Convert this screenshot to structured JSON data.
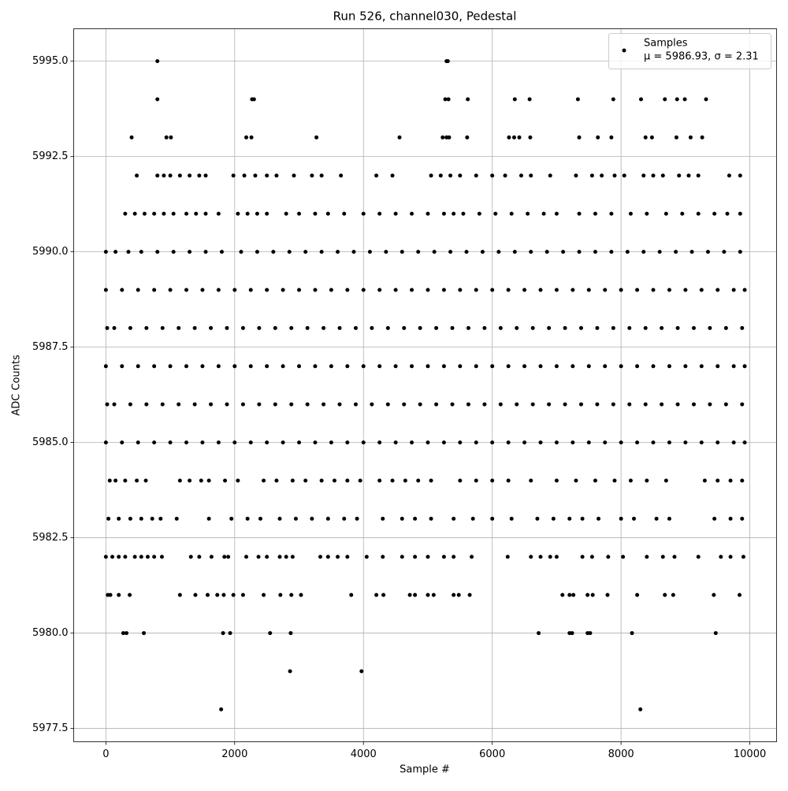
{
  "chart_data": {
    "type": "scatter",
    "title": "Run 526, channel030, Pedestal",
    "x_label": "Sample #",
    "y_label": "ADC Counts",
    "xlim": [
      -500,
      10415
    ],
    "ylim": [
      5977.15,
      5995.85
    ],
    "xticks": [
      0,
      2000,
      4000,
      6000,
      8000,
      10000
    ],
    "yticks": [
      5977.5,
      {
        "value": 5980,
        "label": "5980.0"
      },
      5982.5,
      {
        "value": 5985,
        "label": "5985.0"
      },
      5987.5,
      {
        "value": 5990,
        "label": "5990.0"
      },
      5992.5,
      {
        "value": 5995,
        "label": "5995.0"
      }
    ],
    "grid": true,
    "legend": "upper right",
    "legend_note": "μ = 5986.93, σ = 2.31",
    "series": [
      {
        "name": "Samples",
        "color": "#000000",
        "x": [
          800,
          5290,
          5310,
          800,
          2270,
          2300,
          5270,
          5320,
          5620,
          6350,
          6580,
          7330,
          7880,
          8310,
          8680,
          8870,
          8990,
          9320,
          400,
          940,
          1010,
          2180,
          2260,
          3270,
          4560,
          5230,
          5290,
          5330,
          5610,
          6260,
          6340,
          6420,
          6590,
          7350,
          7640,
          7850,
          8380,
          8480,
          8860,
          9080,
          9260,
          480,
          800,
          900,
          1000,
          1150,
          1300,
          1450,
          1550,
          1980,
          2150,
          2320,
          2500,
          2650,
          2920,
          3200,
          3350,
          3650,
          4200,
          4450,
          5050,
          5200,
          5350,
          5500,
          5750,
          6000,
          6200,
          6450,
          6600,
          6900,
          7300,
          7550,
          7700,
          7900,
          8050,
          8350,
          8500,
          8650,
          8900,
          9050,
          9200,
          9680,
          9850,
          300,
          450,
          600,
          750,
          900,
          1050,
          1250,
          1400,
          1550,
          1750,
          2050,
          2200,
          2350,
          2500,
          2800,
          3000,
          3250,
          3450,
          3700,
          4000,
          4250,
          4500,
          4750,
          5000,
          5250,
          5400,
          5550,
          5800,
          6050,
          6300,
          6550,
          6800,
          7000,
          7350,
          7600,
          7850,
          8150,
          8400,
          8700,
          8950,
          9200,
          9450,
          9650,
          9850,
          0,
          150,
          350,
          550,
          800,
          1050,
          1300,
          1550,
          1800,
          2100,
          2350,
          2600,
          2850,
          3100,
          3350,
          3600,
          3850,
          4100,
          4350,
          4600,
          4850,
          5100,
          5350,
          5600,
          5850,
          6100,
          6350,
          6600,
          6850,
          7100,
          7350,
          7600,
          7850,
          8100,
          8350,
          8600,
          8850,
          9100,
          9350,
          9600,
          9850,
          0,
          250,
          500,
          750,
          1000,
          1250,
          1500,
          1750,
          2000,
          2250,
          2500,
          2750,
          3000,
          3250,
          3500,
          3750,
          4000,
          4250,
          4500,
          4750,
          5000,
          5250,
          5500,
          5750,
          6000,
          6250,
          6500,
          6750,
          7000,
          7250,
          7500,
          7750,
          8000,
          8250,
          8500,
          8750,
          9000,
          9250,
          9500,
          9750,
          9920,
          20,
          130,
          380,
          630,
          880,
          1130,
          1380,
          1630,
          1880,
          2130,
          2380,
          2630,
          2880,
          3130,
          3380,
          3630,
          3880,
          4130,
          4380,
          4630,
          4880,
          5130,
          5380,
          5630,
          5880,
          6130,
          6380,
          6630,
          6880,
          7130,
          7380,
          7630,
          7880,
          8130,
          8380,
          8630,
          8880,
          9130,
          9380,
          9630,
          9880,
          0,
          250,
          500,
          750,
          1000,
          1250,
          1500,
          1750,
          2000,
          2250,
          2500,
          2750,
          3000,
          3250,
          3500,
          3750,
          4000,
          4250,
          4500,
          4750,
          5000,
          5250,
          5500,
          5750,
          6000,
          6250,
          6500,
          6750,
          7000,
          7250,
          7500,
          7750,
          8000,
          8250,
          8500,
          8750,
          9000,
          9250,
          9500,
          9750,
          9920,
          20,
          130,
          380,
          630,
          880,
          1130,
          1380,
          1630,
          1880,
          2130,
          2380,
          2630,
          2880,
          3130,
          3380,
          3630,
          3880,
          4130,
          4380,
          4630,
          4880,
          5130,
          5380,
          5630,
          5880,
          6130,
          6380,
          6630,
          6880,
          7130,
          7380,
          7630,
          7880,
          8130,
          8380,
          8630,
          8880,
          9130,
          9380,
          9630,
          9880,
          0,
          250,
          500,
          750,
          1000,
          1250,
          1500,
          1750,
          2000,
          2250,
          2500,
          2750,
          3000,
          3250,
          3500,
          3750,
          4000,
          4250,
          4500,
          4750,
          5000,
          5250,
          5500,
          5750,
          6000,
          6250,
          6500,
          6750,
          7000,
          7250,
          7500,
          7750,
          8000,
          8250,
          8500,
          8750,
          9000,
          9250,
          9500,
          9750,
          9920,
          60,
          150,
          300,
          480,
          620,
          1150,
          1300,
          1480,
          1600,
          1850,
          2050,
          2450,
          2650,
          2900,
          3100,
          3350,
          3550,
          3750,
          3950,
          4250,
          4450,
          4650,
          4850,
          5050,
          5500,
          5750,
          6000,
          6250,
          6600,
          7000,
          7300,
          7600,
          7900,
          8150,
          8400,
          8700,
          9300,
          9500,
          9700,
          9880,
          40,
          200,
          380,
          550,
          720,
          850,
          1100,
          1600,
          1950,
          2200,
          2400,
          2700,
          2950,
          3200,
          3450,
          3700,
          3900,
          4300,
          4600,
          4800,
          5050,
          5400,
          5700,
          6000,
          6300,
          6700,
          6950,
          7200,
          7400,
          7650,
          8000,
          8200,
          8550,
          8750,
          9450,
          9700,
          9880,
          0,
          100,
          200,
          300,
          450,
          550,
          650,
          750,
          870,
          1320,
          1450,
          1640,
          1840,
          1900,
          2180,
          2370,
          2500,
          2700,
          2800,
          2900,
          3330,
          3450,
          3600,
          3750,
          4050,
          4300,
          4600,
          4800,
          5000,
          5250,
          5400,
          5680,
          6240,
          6600,
          6750,
          6900,
          7000,
          7400,
          7550,
          7800,
          8030,
          8400,
          8650,
          8830,
          9200,
          9550,
          9700,
          9900,
          30,
          70,
          200,
          370,
          1150,
          1390,
          1580,
          1730,
          1830,
          1980,
          2130,
          2450,
          2710,
          2880,
          3030,
          3810,
          4200,
          4310,
          4720,
          4800,
          5000,
          5090,
          5400,
          5480,
          5650,
          7090,
          7200,
          7260,
          7480,
          7560,
          7790,
          8250,
          8680,
          8810,
          9440,
          9840,
          270,
          320,
          590,
          1820,
          1930,
          2550,
          2870,
          6720,
          7200,
          7240,
          7480,
          7520,
          8170,
          9470,
          2860,
          3970,
          1790,
          8300
        ],
        "values": [
          5995,
          5995,
          5995,
          5994,
          5994,
          5994,
          5994,
          5994,
          5994,
          5994,
          5994,
          5994,
          5994,
          5994,
          5994,
          5994,
          5994,
          5994,
          5993,
          5993,
          5993,
          5993,
          5993,
          5993,
          5993,
          5993,
          5993,
          5993,
          5993,
          5993,
          5993,
          5993,
          5993,
          5993,
          5993,
          5993,
          5993,
          5993,
          5993,
          5993,
          5993,
          5992,
          5992,
          5992,
          5992,
          5992,
          5992,
          5992,
          5992,
          5992,
          5992,
          5992,
          5992,
          5992,
          5992,
          5992,
          5992,
          5992,
          5992,
          5992,
          5992,
          5992,
          5992,
          5992,
          5992,
          5992,
          5992,
          5992,
          5992,
          5992,
          5992,
          5992,
          5992,
          5992,
          5992,
          5992,
          5992,
          5992,
          5992,
          5992,
          5992,
          5992,
          5992,
          5991,
          5991,
          5991,
          5991,
          5991,
          5991,
          5991,
          5991,
          5991,
          5991,
          5991,
          5991,
          5991,
          5991,
          5991,
          5991,
          5991,
          5991,
          5991,
          5991,
          5991,
          5991,
          5991,
          5991,
          5991,
          5991,
          5991,
          5991,
          5991,
          5991,
          5991,
          5991,
          5991,
          5991,
          5991,
          5991,
          5991,
          5991,
          5991,
          5991,
          5991,
          5991,
          5991,
          5991,
          5990,
          5990,
          5990,
          5990,
          5990,
          5990,
          5990,
          5990,
          5990,
          5990,
          5990,
          5990,
          5990,
          5990,
          5990,
          5990,
          5990,
          5990,
          5990,
          5990,
          5990,
          5990,
          5990,
          5990,
          5990,
          5990,
          5990,
          5990,
          5990,
          5990,
          5990,
          5990,
          5990,
          5990,
          5990,
          5990,
          5990,
          5990,
          5990,
          5990,
          5990,
          5989,
          5989,
          5989,
          5989,
          5989,
          5989,
          5989,
          5989,
          5989,
          5989,
          5989,
          5989,
          5989,
          5989,
          5989,
          5989,
          5989,
          5989,
          5989,
          5989,
          5989,
          5989,
          5989,
          5989,
          5989,
          5989,
          5989,
          5989,
          5989,
          5989,
          5989,
          5989,
          5989,
          5989,
          5989,
          5989,
          5989,
          5989,
          5989,
          5989,
          5989,
          5988,
          5988,
          5988,
          5988,
          5988,
          5988,
          5988,
          5988,
          5988,
          5988,
          5988,
          5988,
          5988,
          5988,
          5988,
          5988,
          5988,
          5988,
          5988,
          5988,
          5988,
          5988,
          5988,
          5988,
          5988,
          5988,
          5988,
          5988,
          5988,
          5988,
          5988,
          5988,
          5988,
          5988,
          5988,
          5988,
          5988,
          5988,
          5988,
          5988,
          5988,
          5987,
          5987,
          5987,
          5987,
          5987,
          5987,
          5987,
          5987,
          5987,
          5987,
          5987,
          5987,
          5987,
          5987,
          5987,
          5987,
          5987,
          5987,
          5987,
          5987,
          5987,
          5987,
          5987,
          5987,
          5987,
          5987,
          5987,
          5987,
          5987,
          5987,
          5987,
          5987,
          5987,
          5987,
          5987,
          5987,
          5987,
          5987,
          5987,
          5987,
          5987,
          5986,
          5986,
          5986,
          5986,
          5986,
          5986,
          5986,
          5986,
          5986,
          5986,
          5986,
          5986,
          5986,
          5986,
          5986,
          5986,
          5986,
          5986,
          5986,
          5986,
          5986,
          5986,
          5986,
          5986,
          5986,
          5986,
          5986,
          5986,
          5986,
          5986,
          5986,
          5986,
          5986,
          5986,
          5986,
          5986,
          5986,
          5986,
          5986,
          5986,
          5986,
          5985,
          5985,
          5985,
          5985,
          5985,
          5985,
          5985,
          5985,
          5985,
          5985,
          5985,
          5985,
          5985,
          5985,
          5985,
          5985,
          5985,
          5985,
          5985,
          5985,
          5985,
          5985,
          5985,
          5985,
          5985,
          5985,
          5985,
          5985,
          5985,
          5985,
          5985,
          5985,
          5985,
          5985,
          5985,
          5985,
          5985,
          5985,
          5985,
          5985,
          5985,
          5984,
          5984,
          5984,
          5984,
          5984,
          5984,
          5984,
          5984,
          5984,
          5984,
          5984,
          5984,
          5984,
          5984,
          5984,
          5984,
          5984,
          5984,
          5984,
          5984,
          5984,
          5984,
          5984,
          5984,
          5984,
          5984,
          5984,
          5984,
          5984,
          5984,
          5984,
          5984,
          5984,
          5984,
          5984,
          5984,
          5984,
          5984,
          5984,
          5984,
          5983,
          5983,
          5983,
          5983,
          5983,
          5983,
          5983,
          5983,
          5983,
          5983,
          5983,
          5983,
          5983,
          5983,
          5983,
          5983,
          5983,
          5983,
          5983,
          5983,
          5983,
          5983,
          5983,
          5983,
          5983,
          5983,
          5983,
          5983,
          5983,
          5983,
          5983,
          5983,
          5983,
          5983,
          5983,
          5983,
          5983,
          5982,
          5982,
          5982,
          5982,
          5982,
          5982,
          5982,
          5982,
          5982,
          5982,
          5982,
          5982,
          5982,
          5982,
          5982,
          5982,
          5982,
          5982,
          5982,
          5982,
          5982,
          5982,
          5982,
          5982,
          5982,
          5982,
          5982,
          5982,
          5982,
          5982,
          5982,
          5982,
          5982,
          5982,
          5982,
          5982,
          5982,
          5982,
          5982,
          5982,
          5982,
          5982,
          5982,
          5982,
          5982,
          5982,
          5982,
          5982,
          5981,
          5981,
          5981,
          5981,
          5981,
          5981,
          5981,
          5981,
          5981,
          5981,
          5981,
          5981,
          5981,
          5981,
          5981,
          5981,
          5981,
          5981,
          5981,
          5981,
          5981,
          5981,
          5981,
          5981,
          5981,
          5981,
          5981,
          5981,
          5981,
          5981,
          5981,
          5981,
          5981,
          5981,
          5981,
          5981,
          5980,
          5980,
          5980,
          5980,
          5980,
          5980,
          5980,
          5980,
          5980,
          5980,
          5980,
          5980,
          5980,
          5980,
          5979,
          5979,
          5978,
          5978
        ]
      }
    ]
  }
}
